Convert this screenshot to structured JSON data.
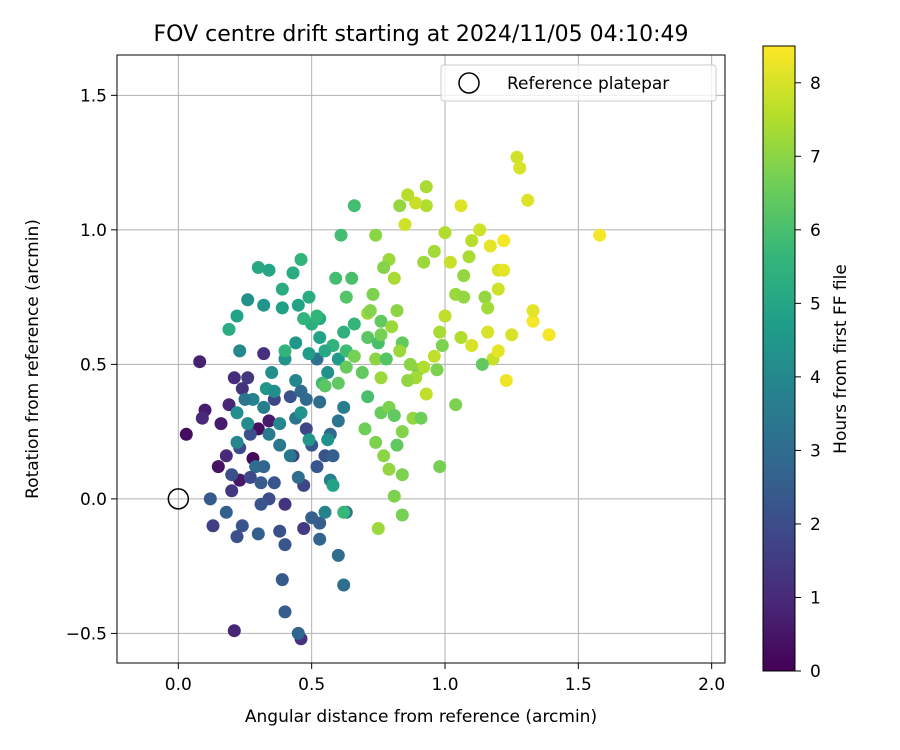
{
  "chart_data": {
    "type": "scatter",
    "title": "FOV centre drift starting at 2024/11/05 04:10:49",
    "xlabel": "Angular distance from reference (arcmin)",
    "ylabel": "Rotation from reference (arcmin)",
    "xlim": [
      -0.23,
      2.05
    ],
    "ylim": [
      -0.61,
      1.65
    ],
    "x_ticks": [
      0.0,
      0.5,
      1.0,
      1.5,
      2.0
    ],
    "x_tick_labels": [
      "0.0",
      "0.5",
      "1.0",
      "1.5",
      "2.0"
    ],
    "y_ticks": [
      -0.5,
      0.0,
      0.5,
      1.0,
      1.5
    ],
    "y_tick_labels": [
      "−0.5",
      "0.0",
      "0.5",
      "1.0",
      "1.5"
    ],
    "grid": true,
    "legend": {
      "placement": "top-right",
      "entries": [
        "Reference platepar"
      ]
    },
    "reference_point": {
      "x": 0.0,
      "y": 0.0,
      "label": "Reference platepar"
    },
    "colorbar": {
      "label": "Hours from first FF file",
      "range": [
        0,
        8.5
      ],
      "ticks": [
        0,
        1,
        2,
        3,
        4,
        5,
        6,
        7,
        8
      ],
      "tick_labels": [
        "0",
        "1",
        "2",
        "3",
        "4",
        "5",
        "6",
        "7",
        "8"
      ],
      "colormap": "viridis"
    },
    "colormap_stops": [
      "#440154",
      "#482878",
      "#3e4989",
      "#31688e",
      "#26828e",
      "#1f9e89",
      "#35b779",
      "#6ece58",
      "#b5de2b",
      "#fde725"
    ],
    "points": [
      [
        0.08,
        0.51,
        0.8
      ],
      [
        0.03,
        0.24,
        0.3
      ],
      [
        0.1,
        0.33,
        0.7
      ],
      [
        0.09,
        0.3,
        1.0
      ],
      [
        0.16,
        0.28,
        0.6
      ],
      [
        0.19,
        0.35,
        0.9
      ],
      [
        0.21,
        -0.49,
        0.9
      ],
      [
        0.46,
        -0.52,
        1.2
      ],
      [
        0.15,
        0.12,
        0.4
      ],
      [
        0.23,
        0.07,
        0.5
      ],
      [
        0.28,
        0.15,
        0.2
      ],
      [
        0.3,
        0.26,
        0.3
      ],
      [
        0.18,
        0.16,
        1.0
      ],
      [
        0.2,
        0.03,
        1.4
      ],
      [
        0.24,
        0.41,
        1.3
      ],
      [
        0.21,
        0.45,
        1.1
      ],
      [
        0.26,
        0.45,
        1.4
      ],
      [
        0.32,
        0.54,
        1.2
      ],
      [
        0.34,
        0.29,
        0.6
      ],
      [
        0.36,
        0.37,
        1.8
      ],
      [
        0.43,
        0.16,
        1.5
      ],
      [
        0.47,
        -0.11,
        1.5
      ],
      [
        0.38,
        -0.12,
        2.1
      ],
      [
        0.4,
        -0.02,
        1.3
      ],
      [
        0.13,
        -0.1,
        1.6
      ],
      [
        0.22,
        -0.14,
        2.1
      ],
      [
        0.24,
        -0.1,
        2.2
      ],
      [
        0.12,
        0.0,
        2.4
      ],
      [
        0.3,
        -0.13,
        2.6
      ],
      [
        0.4,
        -0.17,
        2.3
      ],
      [
        0.39,
        -0.3,
        2.4
      ],
      [
        0.4,
        -0.42,
        2.5
      ],
      [
        0.45,
        -0.5,
        2.8
      ],
      [
        0.5,
        -0.07,
        2.6
      ],
      [
        0.53,
        -0.15,
        2.7
      ],
      [
        0.53,
        -0.09,
        2.5
      ],
      [
        0.52,
        0.12,
        2.3
      ],
      [
        0.47,
        0.05,
        1.8
      ],
      [
        0.34,
        0.0,
        2.0
      ],
      [
        0.31,
        -0.02,
        2.3
      ],
      [
        0.23,
        0.19,
        1.9
      ],
      [
        0.27,
        0.24,
        2.1
      ],
      [
        0.42,
        0.38,
        2.2
      ],
      [
        0.46,
        0.4,
        2.9
      ],
      [
        0.48,
        0.26,
        1.8
      ],
      [
        0.5,
        0.2,
        2.3
      ],
      [
        0.55,
        0.16,
        2.2
      ],
      [
        0.57,
        0.24,
        2.9
      ],
      [
        0.58,
        0.16,
        2.6
      ],
      [
        0.53,
        0.36,
        3.0
      ],
      [
        0.6,
        -0.21,
        3.0
      ],
      [
        0.62,
        -0.32,
        3.1
      ],
      [
        0.63,
        -0.05,
        3.3
      ],
      [
        0.57,
        0.07,
        3.6
      ],
      [
        0.6,
        0.29,
        3.3
      ],
      [
        0.62,
        0.34,
        3.6
      ],
      [
        0.52,
        0.52,
        3.2
      ],
      [
        0.48,
        0.37,
        2.9
      ],
      [
        0.44,
        0.3,
        3.3
      ],
      [
        0.38,
        0.2,
        3.4
      ],
      [
        0.32,
        0.34,
        3.6
      ],
      [
        0.28,
        0.37,
        3.8
      ],
      [
        0.22,
        0.21,
        3.9
      ],
      [
        0.22,
        0.32,
        4.2
      ],
      [
        0.26,
        0.28,
        4.1
      ],
      [
        0.33,
        0.41,
        4.5
      ],
      [
        0.35,
        0.47,
        4.2
      ],
      [
        0.4,
        0.52,
        4.4
      ],
      [
        0.44,
        0.58,
        4.5
      ],
      [
        0.49,
        0.54,
        4.7
      ],
      [
        0.56,
        0.47,
        4.3
      ],
      [
        0.6,
        0.52,
        4.6
      ],
      [
        0.53,
        0.6,
        4.9
      ],
      [
        0.53,
        0.67,
        5.1
      ],
      [
        0.5,
        0.65,
        5.3
      ],
      [
        0.45,
        0.72,
        4.9
      ],
      [
        0.39,
        0.71,
        4.8
      ],
      [
        0.32,
        0.72,
        4.4
      ],
      [
        0.26,
        0.74,
        4.3
      ],
      [
        0.22,
        0.68,
        4.9
      ],
      [
        0.19,
        0.63,
        5.2
      ],
      [
        0.23,
        0.55,
        4.0
      ],
      [
        0.3,
        0.86,
        5.1
      ],
      [
        0.34,
        0.85,
        5.0
      ],
      [
        0.43,
        0.84,
        5.2
      ],
      [
        0.46,
        0.89,
        5.5
      ],
      [
        0.39,
        0.78,
        5.2
      ],
      [
        0.49,
        0.75,
        5.2
      ],
      [
        0.52,
        0.68,
        5.6
      ],
      [
        0.59,
        0.82,
        5.9
      ],
      [
        0.61,
        0.98,
        5.9
      ],
      [
        0.66,
        1.09,
        5.9
      ],
      [
        0.63,
        0.75,
        6.2
      ],
      [
        0.65,
        0.82,
        6.0
      ],
      [
        0.66,
        0.65,
        5.6
      ],
      [
        0.63,
        0.55,
        5.8
      ],
      [
        0.58,
        0.57,
        5.5
      ],
      [
        0.54,
        0.43,
        5.8
      ],
      [
        0.55,
        0.42,
        6.3
      ],
      [
        0.6,
        0.43,
        6.4
      ],
      [
        0.63,
        0.49,
        6.5
      ],
      [
        0.66,
        0.53,
        6.7
      ],
      [
        0.71,
        0.6,
        6.3
      ],
      [
        0.73,
        0.76,
        6.8
      ],
      [
        0.71,
        0.69,
        7.2
      ],
      [
        0.75,
        0.58,
        6.0
      ],
      [
        0.76,
        0.66,
        6.4
      ],
      [
        0.76,
        0.61,
        6.7
      ],
      [
        0.74,
        0.52,
        7.0
      ],
      [
        0.76,
        0.45,
        7.2
      ],
      [
        0.71,
        0.38,
        6.0
      ],
      [
        0.7,
        0.26,
        6.6
      ],
      [
        0.74,
        0.21,
        6.8
      ],
      [
        0.76,
        0.32,
        6.5
      ],
      [
        0.79,
        0.34,
        6.8
      ],
      [
        0.81,
        0.31,
        6.4
      ],
      [
        0.84,
        0.25,
        6.9
      ],
      [
        0.88,
        0.3,
        7.1
      ],
      [
        0.91,
        0.3,
        6.6
      ],
      [
        0.77,
        0.16,
        7.0
      ],
      [
        0.79,
        0.11,
        7.1
      ],
      [
        0.84,
        0.09,
        6.8
      ],
      [
        0.81,
        0.01,
        6.8
      ],
      [
        0.84,
        -0.06,
        6.7
      ],
      [
        0.75,
        -0.11,
        7.2
      ],
      [
        0.98,
        0.12,
        6.7
      ],
      [
        1.04,
        0.35,
        6.8
      ],
      [
        0.9,
        0.48,
        6.8
      ],
      [
        0.92,
        0.49,
        7.5
      ],
      [
        0.97,
        0.48,
        6.8
      ],
      [
        0.96,
        0.53,
        7.7
      ],
      [
        0.98,
        0.62,
        7.4
      ],
      [
        0.99,
        0.57,
        6.8
      ],
      [
        1.0,
        0.68,
        7.7
      ],
      [
        1.04,
        0.76,
        7.2
      ],
      [
        1.07,
        0.83,
        7.1
      ],
      [
        1.02,
        0.88,
        7.8
      ],
      [
        0.96,
        0.92,
        7.3
      ],
      [
        1.0,
        0.99,
        7.5
      ],
      [
        0.93,
        1.09,
        7.5
      ],
      [
        0.89,
        1.1,
        7.8
      ],
      [
        0.86,
        1.13,
        7.6
      ],
      [
        0.83,
        1.09,
        7.1
      ],
      [
        0.79,
        0.89,
        7.2
      ],
      [
        0.81,
        0.82,
        7.4
      ],
      [
        0.82,
        0.7,
        7.0
      ],
      [
        0.8,
        0.64,
        7.2
      ],
      [
        0.84,
        0.58,
        6.4
      ],
      [
        0.83,
        0.55,
        7.2
      ],
      [
        0.87,
        0.5,
        7.0
      ],
      [
        0.89,
        0.45,
        7.3
      ],
      [
        0.93,
        0.39,
        7.7
      ],
      [
        1.06,
        0.6,
        7.5
      ],
      [
        1.1,
        0.57,
        8.0
      ],
      [
        1.16,
        0.62,
        8.0
      ],
      [
        1.18,
        0.52,
        7.8
      ],
      [
        1.2,
        0.55,
        8.2
      ],
      [
        1.25,
        0.61,
        8.0
      ],
      [
        1.23,
        0.44,
        8.3
      ],
      [
        1.33,
        0.66,
        8.4
      ],
      [
        1.39,
        0.61,
        8.4
      ],
      [
        1.33,
        0.7,
        8.2
      ],
      [
        1.2,
        0.78,
        7.9
      ],
      [
        1.2,
        0.85,
        8.0
      ],
      [
        1.22,
        0.85,
        8.2
      ],
      [
        1.17,
        0.94,
        8.2
      ],
      [
        1.22,
        0.96,
        8.4
      ],
      [
        1.13,
        1.0,
        7.9
      ],
      [
        1.1,
        0.96,
        7.6
      ],
      [
        1.09,
        0.9,
        7.4
      ],
      [
        1.07,
        0.75,
        7.1
      ],
      [
        1.15,
        0.75,
        7.1
      ],
      [
        1.16,
        0.71,
        7.3
      ],
      [
        1.27,
        1.27,
        7.9
      ],
      [
        1.28,
        1.23,
        8.0
      ],
      [
        1.31,
        1.11,
        8.1
      ],
      [
        1.58,
        0.98,
        8.4
      ],
      [
        1.06,
        1.09,
        8.1
      ],
      [
        0.93,
        1.16,
        7.4
      ],
      [
        0.85,
        1.02,
        7.9
      ],
      [
        0.74,
        0.98,
        7.0
      ],
      [
        0.77,
        0.86,
        6.9
      ],
      [
        0.72,
        0.7,
        6.9
      ],
      [
        0.92,
        0.88,
        7.2
      ],
      [
        1.14,
        0.5,
        6.4
      ],
      [
        0.82,
        0.2,
        6.4
      ],
      [
        0.44,
        0.44,
        3.9
      ],
      [
        0.36,
        0.4,
        4.2
      ],
      [
        0.29,
        0.12,
        3.0
      ],
      [
        0.2,
        0.09,
        2.1
      ],
      [
        0.18,
        -0.05,
        2.6
      ],
      [
        0.55,
        -0.05,
        3.8
      ],
      [
        0.45,
        0.08,
        3.0
      ],
      [
        0.42,
        0.16,
        3.4
      ],
      [
        0.56,
        0.22,
        4.3
      ],
      [
        0.58,
        0.05,
        4.9
      ],
      [
        0.62,
        -0.05,
        5.7
      ],
      [
        0.27,
        0.08,
        1.9
      ],
      [
        0.31,
        0.06,
        2.5
      ],
      [
        0.36,
        0.06,
        2.3
      ],
      [
        0.32,
        0.12,
        2.8
      ],
      [
        0.25,
        0.37,
        3.3
      ],
      [
        0.34,
        0.24,
        3.5
      ],
      [
        0.38,
        0.28,
        3.9
      ],
      [
        0.46,
        0.32,
        4.4
      ],
      [
        0.49,
        0.22,
        4.5
      ],
      [
        0.4,
        0.55,
        5.5
      ],
      [
        0.47,
        0.67,
        5.5
      ],
      [
        0.55,
        0.55,
        5.1
      ],
      [
        0.62,
        0.62,
        5.4
      ],
      [
        0.69,
        0.47,
        6.4
      ],
      [
        0.78,
        0.52,
        6.2
      ],
      [
        0.86,
        0.44,
        7.1
      ]
    ]
  }
}
